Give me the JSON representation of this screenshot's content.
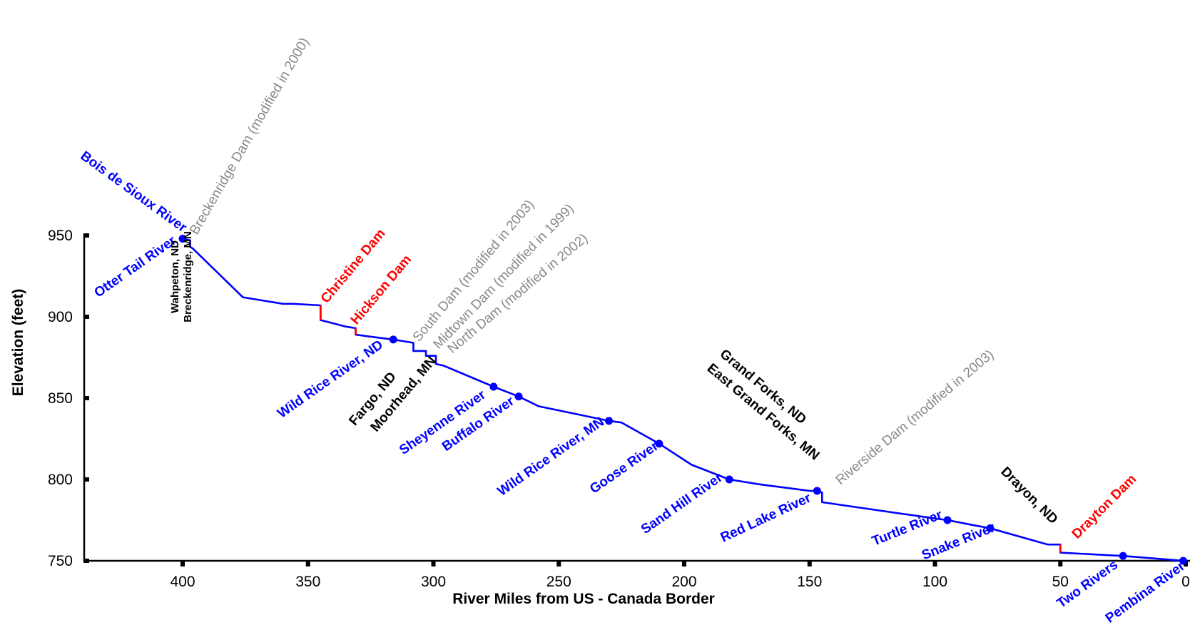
{
  "chart_data": {
    "type": "line",
    "title": "",
    "xlabel": "River Miles from US - Canada Border",
    "ylabel": "Elevation (feet)",
    "xlim": [
      437,
      0
    ],
    "ylim": [
      750,
      950
    ],
    "x_ticks": [
      "400",
      "350",
      "300",
      "250",
      "200",
      "150",
      "100",
      "50",
      "0"
    ],
    "y_ticks": [
      "750",
      "800",
      "850",
      "900",
      "950"
    ],
    "colors": {
      "profile": "#0000ff",
      "tributary": "#0000ff",
      "city": "#000000",
      "dam_old": "#888888",
      "dam_new": "#ff0000"
    },
    "series": [
      {
        "x": [
          400,
          397,
          397,
          396,
          376,
          360,
          356,
          345,
          345,
          340,
          335,
          331,
          331,
          326,
          316,
          308,
          308,
          303,
          303,
          299,
          299,
          296,
          276,
          266,
          258,
          230,
          225,
          210,
          197,
          182,
          170,
          155,
          150,
          147,
          145,
          145,
          100,
          95,
          85,
          78,
          55,
          50,
          50,
          25,
          1
        ],
        "y": [
          948,
          947,
          943,
          942,
          912,
          908,
          908,
          907,
          898,
          896,
          894,
          893,
          889,
          888,
          886,
          884,
          879,
          879,
          876,
          876,
          871,
          870,
          857,
          851,
          845,
          836,
          835,
          822,
          809,
          800,
          797,
          794,
          793,
          793,
          792,
          786,
          776,
          775,
          772,
          770,
          760,
          760,
          755,
          753,
          750
        ]
      }
    ],
    "dam_drops": [
      {
        "x": 345,
        "y_top": 907,
        "y_bottom": 898,
        "color": "#ff0000"
      },
      {
        "x": 331,
        "y_top": 893,
        "y_bottom": 889,
        "color": "#ff0000"
      },
      {
        "x": 50,
        "y_top": 760,
        "y_bottom": 755,
        "color": "#ff0000"
      }
    ],
    "tributaries": [
      {
        "name": "Bois de Sioux River",
        "x": 400,
        "y": 948
      },
      {
        "name": "Otter Tail River",
        "x": 400,
        "y": 948
      },
      {
        "name": "Wild Rice River, ND",
        "x": 316,
        "y": 886
      },
      {
        "name": "Sheyenne River",
        "x": 276,
        "y": 857
      },
      {
        "name": "Buffalo River",
        "x": 266,
        "y": 851
      },
      {
        "name": "Wild Rice River, MN",
        "x": 230,
        "y": 836
      },
      {
        "name": "Goose River",
        "x": 210,
        "y": 822
      },
      {
        "name": "Sand Hill River",
        "x": 182,
        "y": 800
      },
      {
        "name": "Red Lake River",
        "x": 147,
        "y": 793
      },
      {
        "name": "Turtle River",
        "x": 95,
        "y": 775
      },
      {
        "name": "Snake River",
        "x": 78,
        "y": 770
      },
      {
        "name": "Two Rivers",
        "x": 25,
        "y": 753
      },
      {
        "name": "Pembina River",
        "x": 1,
        "y": 750
      }
    ],
    "cities": [
      {
        "name": "Wahpeton, ND",
        "x": 400
      },
      {
        "name": "Breckenridge, MN",
        "x": 397
      },
      {
        "name": "Fargo, ND",
        "x": 300
      },
      {
        "name": "Moorhead, MN",
        "x": 296
      },
      {
        "name": "Grand Forks, ND",
        "x": 150
      },
      {
        "name": "East Grand Forks, MN",
        "x": 146
      },
      {
        "name": "Drayon, ND",
        "x": 52
      }
    ],
    "dams": [
      {
        "name": "Breckenridge Dam (modified in 2000)",
        "x": 397,
        "color": "#888888"
      },
      {
        "name": "Christine Dam",
        "x": 345,
        "color": "#ff0000"
      },
      {
        "name": "Hickson Dam",
        "x": 331,
        "color": "#ff0000"
      },
      {
        "name": "South Dam (modified in 2003)",
        "x": 308,
        "color": "#888888"
      },
      {
        "name": "Midtown Dam (modified in 1999)",
        "x": 303,
        "color": "#888888"
      },
      {
        "name": "North Dam (modified in 2002)",
        "x": 299,
        "color": "#888888"
      },
      {
        "name": "Riverside Dam (modified in 2003)",
        "x": 145,
        "color": "#888888"
      },
      {
        "name": "Drayton Dam",
        "x": 50,
        "color": "#ff0000"
      }
    ]
  }
}
